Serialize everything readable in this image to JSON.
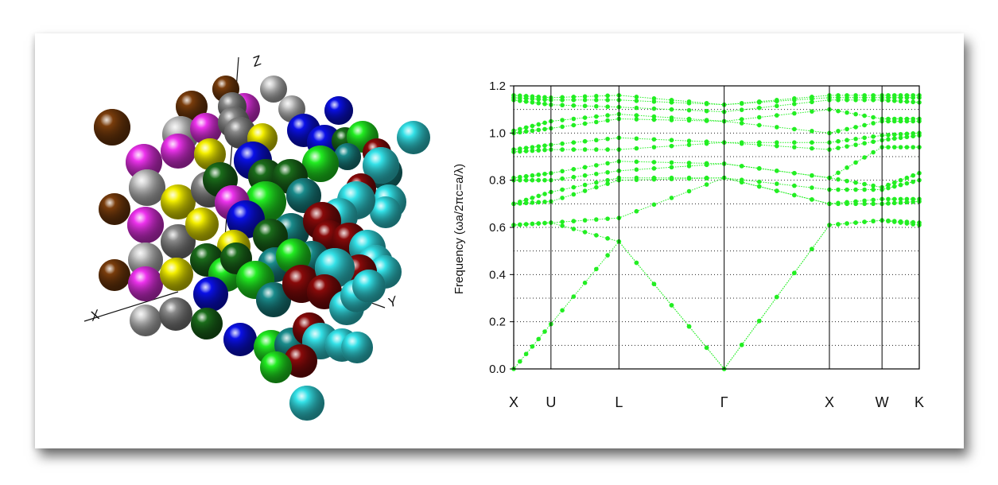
{
  "structure_view": {
    "axis_labels": [
      "X",
      "Y",
      "Z"
    ],
    "sphere_colors": {
      "brown": "#7a3d0c",
      "magenta": "#ee33ee",
      "gray": "#8c8c8c",
      "light_gray": "#c8c8c8",
      "yellow": "#f5f000",
      "dark_green": "#1b6d1b",
      "green": "#22ee22",
      "blue": "#0a10e8",
      "teal": "#1a8c8c",
      "dark_red": "#8a0a0a",
      "cyan": "#34e2e8"
    }
  },
  "chart_data": {
    "type": "line",
    "title": "",
    "xlabel": "",
    "ylabel": "Frequency (ωa/2πc=a/λ)",
    "ylim": [
      0,
      1.2
    ],
    "yticks": [
      "0.0",
      "0.2",
      "0.4",
      "0.6",
      "0.8",
      "1.0",
      "1.2"
    ],
    "high_symmetry_points": [
      {
        "label": "X",
        "x": 0
      },
      {
        "label": "U",
        "x": 0.354
      },
      {
        "label": "L",
        "x": 1.0
      },
      {
        "label": "Γ",
        "x": 2.0
      },
      {
        "label": "X",
        "x": 3.0
      },
      {
        "label": "W",
        "x": 3.5
      },
      {
        "label": "K",
        "x": 3.854
      }
    ],
    "grid": "dotted-horizontal",
    "line_color": "#22ee22",
    "series": [
      {
        "x": [
          0,
          0.354,
          1.0,
          2.0,
          3.0,
          3.5,
          3.854
        ],
        "values": [
          0.0,
          0.19,
          0.54,
          0.0,
          0.61,
          0.63,
          0.61
        ]
      },
      {
        "x": [
          0,
          0.354,
          1.0,
          2.0,
          3.0,
          3.5,
          3.854
        ],
        "values": [
          0.61,
          0.62,
          0.54,
          0.0,
          0.61,
          0.63,
          0.62
        ]
      },
      {
        "x": [
          0,
          0.354,
          1.0,
          2.0,
          3.0,
          3.5,
          3.854
        ],
        "values": [
          0.61,
          0.62,
          0.64,
          0.81,
          0.7,
          0.7,
          0.71
        ]
      },
      {
        "x": [
          0,
          0.354,
          1.0,
          2.0,
          3.0,
          3.5,
          3.854
        ],
        "values": [
          0.7,
          0.71,
          0.8,
          0.81,
          0.7,
          0.72,
          0.72
        ]
      },
      {
        "x": [
          0,
          0.354,
          1.0,
          2.0,
          3.0,
          3.5,
          3.854
        ],
        "values": [
          0.7,
          0.75,
          0.81,
          0.81,
          0.76,
          0.76,
          0.8
        ]
      },
      {
        "x": [
          0,
          0.354,
          1.0,
          2.0,
          3.0,
          3.5,
          3.854
        ],
        "values": [
          0.8,
          0.8,
          0.84,
          0.87,
          0.81,
          0.77,
          0.83
        ]
      },
      {
        "x": [
          0,
          0.354,
          1.0,
          2.0,
          3.0,
          3.5,
          3.854
        ],
        "values": [
          0.81,
          0.83,
          0.88,
          0.87,
          0.81,
          0.94,
          0.94
        ]
      },
      {
        "x": [
          0,
          0.354,
          1.0,
          2.0,
          3.0,
          3.5,
          3.854
        ],
        "values": [
          0.92,
          0.93,
          0.93,
          0.96,
          0.93,
          0.97,
          0.99
        ]
      },
      {
        "x": [
          0,
          0.354,
          1.0,
          2.0,
          3.0,
          3.5,
          3.854
        ],
        "values": [
          0.93,
          0.95,
          0.98,
          0.96,
          0.96,
          0.99,
          1.0
        ]
      },
      {
        "x": [
          0,
          0.354,
          1.0,
          2.0,
          3.0,
          3.5,
          3.854
        ],
        "values": [
          1.0,
          1.02,
          1.06,
          1.05,
          1.0,
          1.05,
          1.05
        ]
      },
      {
        "x": [
          0,
          0.354,
          1.0,
          2.0,
          3.0,
          3.5,
          3.854
        ],
        "values": [
          1.01,
          1.05,
          1.08,
          1.05,
          1.1,
          1.06,
          1.06
        ]
      },
      {
        "x": [
          0,
          0.354,
          1.0,
          2.0,
          3.0,
          3.5,
          3.854
        ],
        "values": [
          1.14,
          1.12,
          1.11,
          1.09,
          1.14,
          1.14,
          1.13
        ]
      },
      {
        "x": [
          0,
          0.354,
          1.0,
          2.0,
          3.0,
          3.5,
          3.854
        ],
        "values": [
          1.15,
          1.14,
          1.14,
          1.12,
          1.15,
          1.15,
          1.15
        ]
      },
      {
        "x": [
          0,
          0.354,
          1.0,
          2.0,
          3.0,
          3.5,
          3.854
        ],
        "values": [
          1.16,
          1.15,
          1.16,
          1.12,
          1.16,
          1.16,
          1.16
        ]
      }
    ]
  }
}
